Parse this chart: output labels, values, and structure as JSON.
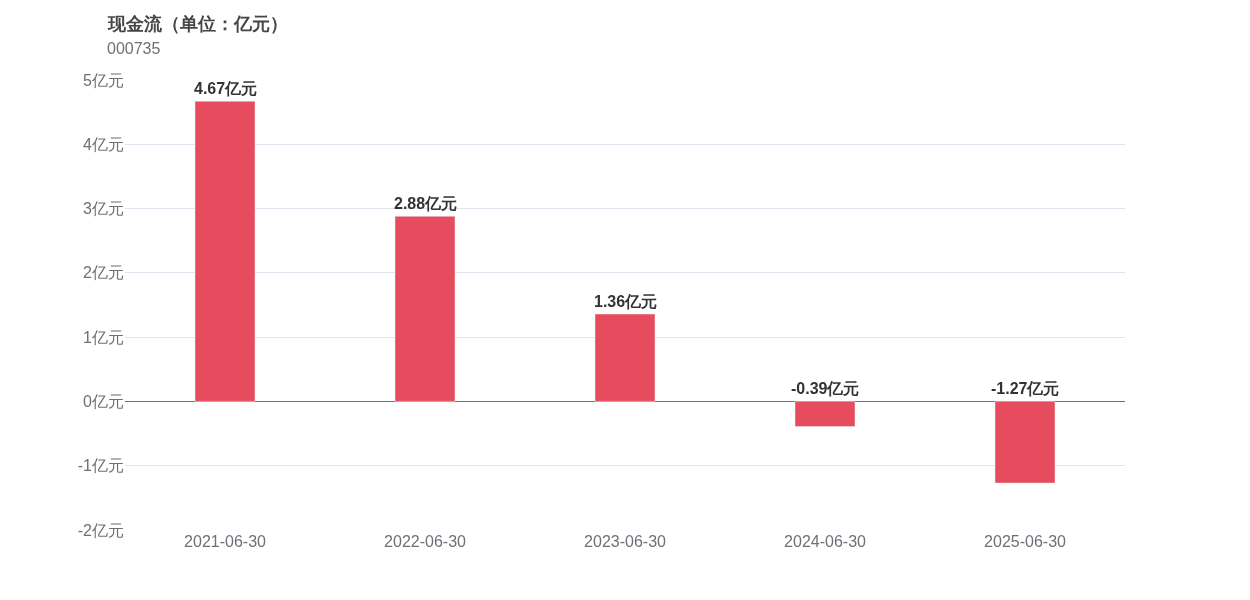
{
  "chart_data": {
    "type": "bar",
    "title": "现金流（单位：亿元）",
    "subtitle": "000735",
    "categories": [
      "2021-06-30",
      "2022-06-30",
      "2023-06-30",
      "2024-06-30",
      "2025-06-30"
    ],
    "values": [
      4.67,
      2.88,
      1.36,
      -0.39,
      -1.27
    ],
    "value_labels": [
      "4.67亿元",
      "2.88亿元",
      "1.36亿元",
      "-0.39亿元",
      "-1.27亿元"
    ],
    "color": "#e64c5e",
    "ylim": [
      -2,
      5
    ],
    "yticks": [
      {
        "value": -2,
        "label": "-2亿元"
      },
      {
        "value": -1,
        "label": "-1亿元"
      },
      {
        "value": 0,
        "label": "0亿元"
      },
      {
        "value": 1,
        "label": "1亿元"
      },
      {
        "value": 2,
        "label": "2亿元"
      },
      {
        "value": 3,
        "label": "3亿元"
      },
      {
        "value": 4,
        "label": "4亿元"
      },
      {
        "value": 5,
        "label": "5亿元"
      }
    ],
    "grid": "y"
  }
}
